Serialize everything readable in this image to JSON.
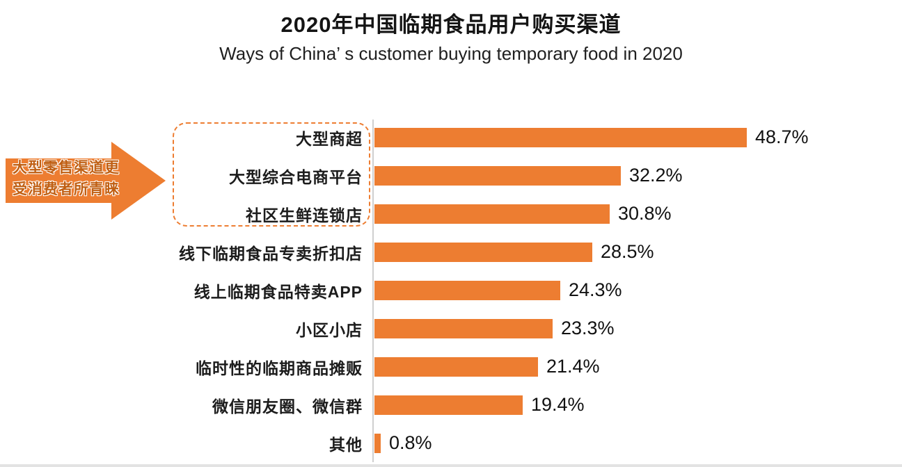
{
  "title": "2020年中国临期食品用户购买渠道",
  "subtitle": "Ways of China’ s customer buying temporary food in 2020",
  "annotation": {
    "line1": "大型零售渠道更",
    "line2": "受消费者所青睐"
  },
  "chart_data": {
    "type": "bar",
    "orientation": "horizontal",
    "title": "2020年中国临期食品用户购买渠道",
    "subtitle": "Ways of China’ s customer buying temporary food in 2020",
    "categories": [
      "大型商超",
      "大型综合电商平台",
      "社区生鲜连锁店",
      "线下临期食品专卖折扣店",
      "线上临期食品特卖APP",
      "小区小店",
      "临时性的临期商品摊贩",
      "微信朋友圈、微信群",
      "其他"
    ],
    "values": [
      48.7,
      32.2,
      30.8,
      28.5,
      24.3,
      23.3,
      21.4,
      19.4,
      0.8
    ],
    "value_labels": [
      "48.7%",
      "32.2%",
      "30.8%",
      "28.5%",
      "24.3%",
      "23.3%",
      "21.4%",
      "19.4%",
      "0.8%"
    ],
    "highlight_group": [
      "大型商超",
      "大型综合电商平台",
      "社区生鲜连锁店"
    ],
    "annotation_text": "大型零售渠道更受消费者所青睐",
    "xlim": [
      0,
      50
    ],
    "grid": false,
    "legend": false,
    "bar_color": "#ED7D31"
  },
  "colors": {
    "bar": "#ED7D31",
    "arrow": "#ED7D31",
    "dashed_box": "#ED7D31",
    "axis_line": "#cfcfcf",
    "text": "#111111"
  }
}
